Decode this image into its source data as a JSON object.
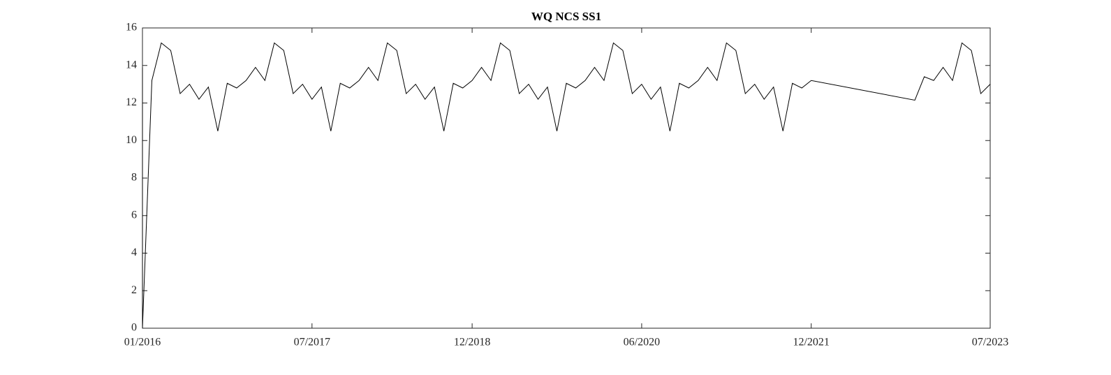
{
  "chart_data": {
    "type": "line",
    "title": "WQ NCS SS1",
    "x": [
      "01/2016",
      "01/2016",
      "02/2016",
      "03/2016",
      "04/2016",
      "05/2016",
      "06/2016",
      "07/2016",
      "08/2016",
      "09/2016",
      "10/2016",
      "11/2016",
      "12/2016",
      "01/2017",
      "02/2017",
      "03/2017",
      "04/2017",
      "05/2017",
      "06/2017",
      "07/2017",
      "08/2017",
      "09/2017",
      "10/2017",
      "11/2017",
      "12/2017",
      "01/2018",
      "02/2018",
      "03/2018",
      "04/2018",
      "05/2018",
      "06/2018",
      "07/2018",
      "08/2018",
      "09/2018",
      "10/2018",
      "11/2018",
      "12/2018",
      "01/2019",
      "02/2019",
      "03/2019",
      "04/2019",
      "05/2019",
      "06/2019",
      "07/2019",
      "08/2019",
      "09/2019",
      "10/2019",
      "11/2019",
      "12/2019",
      "01/2020",
      "02/2020",
      "03/2020",
      "04/2020",
      "05/2020",
      "06/2020",
      "07/2020",
      "08/2020",
      "09/2020",
      "10/2020",
      "11/2020",
      "12/2020",
      "01/2021",
      "02/2021",
      "03/2021",
      "04/2021",
      "05/2021",
      "06/2021",
      "07/2021",
      "08/2021",
      "09/2021",
      "10/2021",
      "11/2021",
      "12/2021",
      "11/2022",
      "12/2022",
      "01/2023",
      "02/2023",
      "03/2023",
      "04/2023",
      "05/2023",
      "06/2023",
      "07/2023"
    ],
    "series": [
      {
        "name": "WQ NCS SS1",
        "color": "#000000",
        "values": [
          13.9,
          0,
          13.2,
          15.2,
          14.8,
          12.5,
          13.0,
          12.2,
          12.85,
          10.5,
          13.05,
          12.8,
          13.2,
          13.9,
          13.2,
          15.2,
          14.8,
          12.5,
          13.0,
          12.2,
          12.85,
          10.5,
          13.05,
          12.8,
          13.2,
          13.9,
          13.2,
          15.2,
          14.8,
          12.5,
          13.0,
          12.2,
          12.85,
          10.5,
          13.05,
          12.8,
          13.2,
          13.9,
          13.2,
          15.2,
          14.8,
          12.5,
          13.0,
          12.2,
          12.85,
          10.5,
          13.05,
          12.8,
          13.2,
          13.9,
          13.2,
          15.2,
          14.8,
          12.5,
          13.0,
          12.2,
          12.85,
          10.5,
          13.05,
          12.8,
          13.2,
          13.9,
          13.2,
          15.2,
          14.8,
          12.5,
          13.0,
          12.2,
          12.85,
          10.5,
          13.05,
          12.8,
          13.2,
          12.15,
          13.4,
          13.2,
          13.9,
          13.2,
          15.2,
          14.8,
          12.5,
          13.0
        ]
      }
    ],
    "xlim": [
      "01/2016",
      "07/2023"
    ],
    "xticks": [
      "01/2016",
      "07/2017",
      "12/2018",
      "06/2020",
      "12/2021",
      "07/2023"
    ],
    "ylim": [
      0,
      16
    ],
    "yticks": [
      0,
      2,
      4,
      6,
      8,
      10,
      12,
      14,
      16
    ],
    "grid": false
  }
}
